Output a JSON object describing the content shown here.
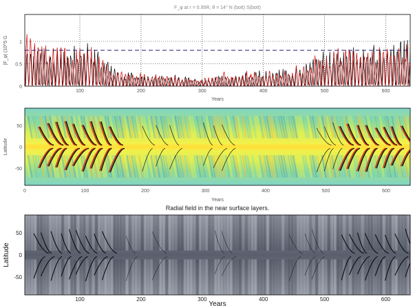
{
  "chart_data": [
    {
      "type": "line",
      "title": "F_φ at r = 0.95R, θ = 14° N (bott) S(bott)",
      "xlabel": "Years",
      "ylabel": "|F_φ| (10^5 G",
      "xlim": [
        10,
        640
      ],
      "ylim": [
        0,
        1.6
      ],
      "xticks": [
        100,
        200,
        300,
        400,
        500,
        600
      ],
      "yticks": [
        0,
        0.5,
        1
      ],
      "ytick_labels": [
        "0",
        "0.5",
        "1"
      ],
      "grid": "dotted",
      "threshold": 0.8,
      "series": [
        {
          "color": "#000000",
          "envelope": [
            [
              10,
              1.0
            ],
            [
              30,
              0.9
            ],
            [
              60,
              0.95
            ],
            [
              90,
              1.0
            ],
            [
              110,
              1.05
            ],
            [
              130,
              0.9
            ],
            [
              150,
              0.5
            ],
            [
              170,
              0.35
            ],
            [
              200,
              0.32
            ],
            [
              230,
              0.28
            ],
            [
              260,
              0.25
            ],
            [
              280,
              0.22
            ],
            [
              300,
              0.18
            ],
            [
              320,
              0.22
            ],
            [
              340,
              0.28
            ],
            [
              370,
              0.32
            ],
            [
              400,
              0.38
            ],
            [
              430,
              0.4
            ],
            [
              450,
              0.45
            ],
            [
              470,
              0.55
            ],
            [
              490,
              0.85
            ],
            [
              510,
              1.0
            ],
            [
              530,
              0.95
            ],
            [
              560,
              0.9
            ],
            [
              590,
              1.0
            ],
            [
              610,
              1.05
            ],
            [
              630,
              1.1
            ]
          ]
        },
        {
          "color": "#cc0000",
          "envelope": [
            [
              10,
              1.6
            ],
            [
              30,
              1.0
            ],
            [
              60,
              0.9
            ],
            [
              90,
              0.95
            ],
            [
              110,
              1.0
            ],
            [
              130,
              0.85
            ],
            [
              150,
              0.45
            ],
            [
              170,
              0.35
            ],
            [
              200,
              0.3
            ],
            [
              230,
              0.28
            ],
            [
              260,
              0.25
            ],
            [
              280,
              0.22
            ],
            [
              300,
              0.2
            ],
            [
              320,
              0.25
            ],
            [
              340,
              0.35
            ],
            [
              370,
              0.35
            ],
            [
              400,
              0.35
            ],
            [
              430,
              0.38
            ],
            [
              450,
              0.45
            ],
            [
              470,
              0.6
            ],
            [
              490,
              0.8
            ],
            [
              510,
              0.9
            ],
            [
              530,
              0.95
            ],
            [
              560,
              0.85
            ],
            [
              590,
              0.95
            ],
            [
              610,
              1.0
            ],
            [
              630,
              1.0
            ]
          ]
        }
      ]
    },
    {
      "type": "heatmap",
      "colormap": "jet",
      "xlabel": "Years",
      "ylabel": "Latitude",
      "xlim": [
        0,
        640
      ],
      "ylim": [
        -90,
        90
      ],
      "xticks": [
        0,
        100,
        200,
        300,
        400,
        500,
        600
      ],
      "yticks": [
        50,
        0,
        -50
      ]
    },
    {
      "type": "heatmap",
      "colormap": "gray",
      "title": "Radial field in the near surface layers.",
      "xlabel": "Years",
      "ylabel": "Latitude",
      "xlim": [
        10,
        640
      ],
      "ylim": [
        -90,
        90
      ],
      "xticks": [
        100,
        200,
        300,
        400,
        500,
        600
      ],
      "yticks": [
        50,
        0,
        -50
      ]
    }
  ]
}
